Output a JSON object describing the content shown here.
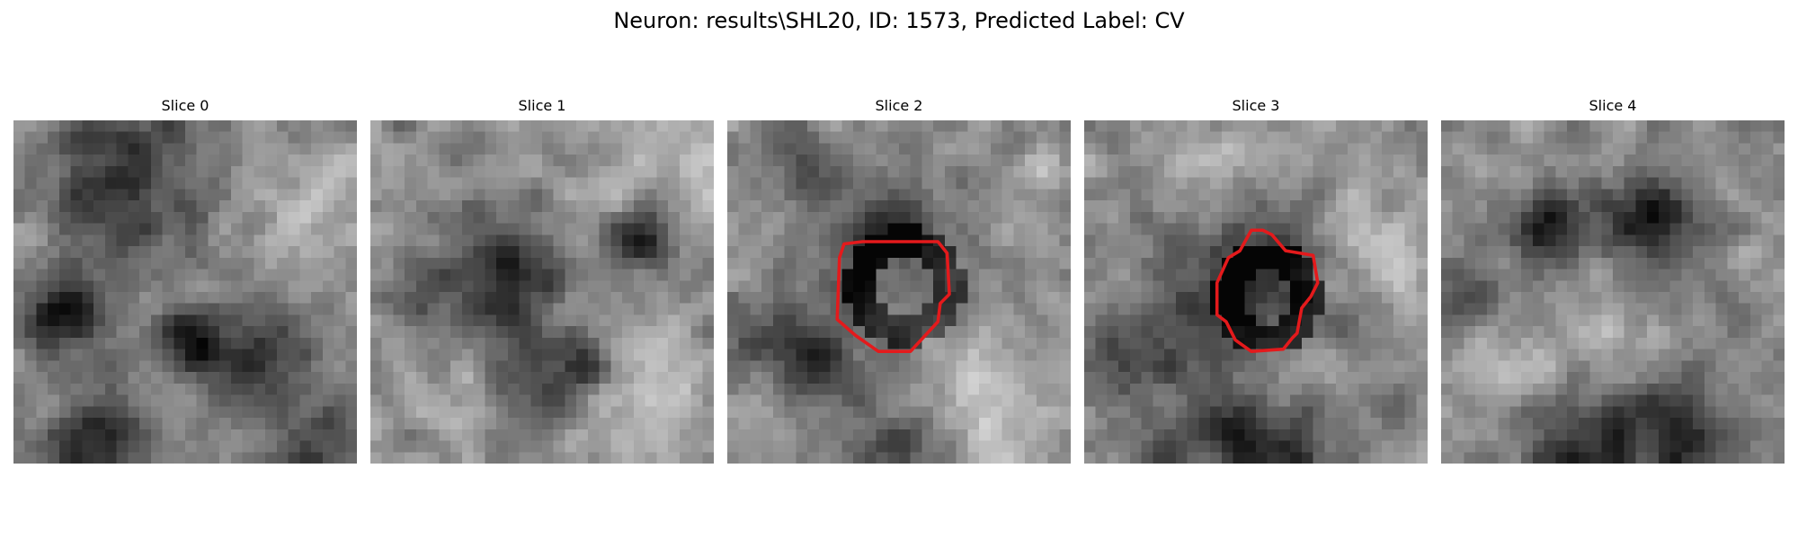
{
  "figure": {
    "suptitle": "Neuron: results\\SHL20, ID: 1573, Predicted Label: CV"
  },
  "panels": [
    {
      "title": "Slice 0",
      "has_contour": false
    },
    {
      "title": "Slice 1",
      "has_contour": false
    },
    {
      "title": "Slice 2",
      "has_contour": true
    },
    {
      "title": "Slice 3",
      "has_contour": true
    },
    {
      "title": "Slice 4",
      "has_contour": false
    }
  ],
  "colors": {
    "contour": "#e41a1c",
    "background": "#ffffff",
    "colormap": "grayscale"
  }
}
